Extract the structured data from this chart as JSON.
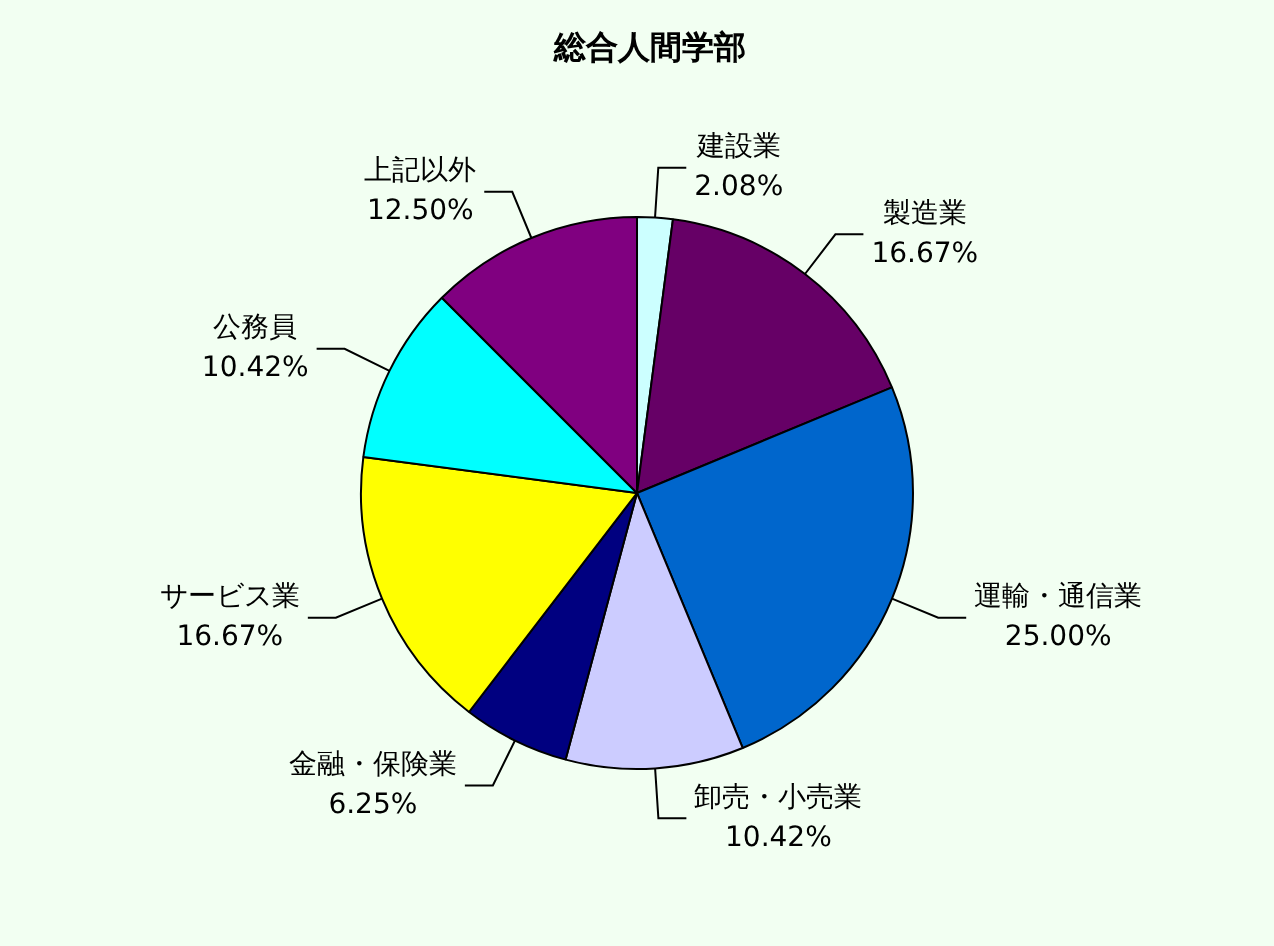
{
  "chart_data": {
    "type": "pie",
    "title": "総合人間学部",
    "categories": [
      "建設業",
      "製造業",
      "運輸・通信業",
      "卸売・小売業",
      "金融・保険業",
      "サービス業",
      "公務員",
      "上記以外"
    ],
    "values": [
      2.08,
      16.67,
      25.0,
      10.42,
      6.25,
      16.67,
      10.42,
      12.5
    ],
    "value_labels": [
      "2.08%",
      "16.67%",
      "25.00%",
      "10.42%",
      "6.25%",
      "16.67%",
      "10.42%",
      "12.50%"
    ],
    "colors": [
      "#ccffff",
      "#660066",
      "#0066cc",
      "#ccccff",
      "#000080",
      "#ffff00",
      "#00ffff",
      "#800080"
    ],
    "legend": false
  }
}
